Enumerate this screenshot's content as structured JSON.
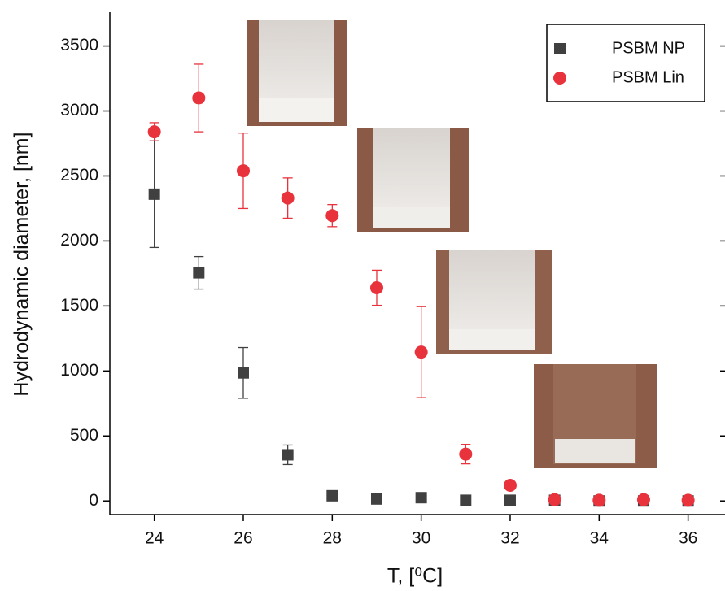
{
  "chart_data": {
    "type": "scatter",
    "x_label": "T, [⁰C]",
    "y_label": "Hydrodynamic diameter, [nm]",
    "xlim": [
      23,
      36.83
    ],
    "ylim": [
      -105,
      3760
    ],
    "xticks": [
      24,
      26,
      28,
      30,
      32,
      34,
      36
    ],
    "yticks": [
      0,
      500,
      1000,
      1500,
      2000,
      2500,
      3000,
      3500
    ],
    "legend": "top-right",
    "series": [
      {
        "name": "PSBM NP",
        "color": "#404040",
        "marker": "square",
        "x": [
          24,
          25,
          26,
          27,
          28,
          29,
          30,
          31,
          32,
          33,
          34,
          35,
          36
        ],
        "values": [
          2360,
          1755,
          985,
          355,
          40,
          15,
          25,
          5,
          5,
          5,
          0,
          0,
          0
        ],
        "errors": [
          410,
          125,
          195,
          75,
          null,
          null,
          null,
          null,
          null,
          null,
          null,
          null,
          null
        ]
      },
      {
        "name": "PSBM Lin",
        "color": "#e8323c",
        "marker": "circle",
        "x": [
          24,
          25,
          26,
          27,
          28,
          29,
          30,
          31,
          32,
          33,
          34,
          35,
          36
        ],
        "values": [
          2840,
          3100,
          2540,
          2330,
          2195,
          1640,
          1145,
          360,
          120,
          10,
          5,
          10,
          5
        ],
        "errors": [
          70,
          260,
          290,
          155,
          85,
          135,
          350,
          75,
          null,
          null,
          null,
          null,
          null
        ]
      }
    ]
  }
}
